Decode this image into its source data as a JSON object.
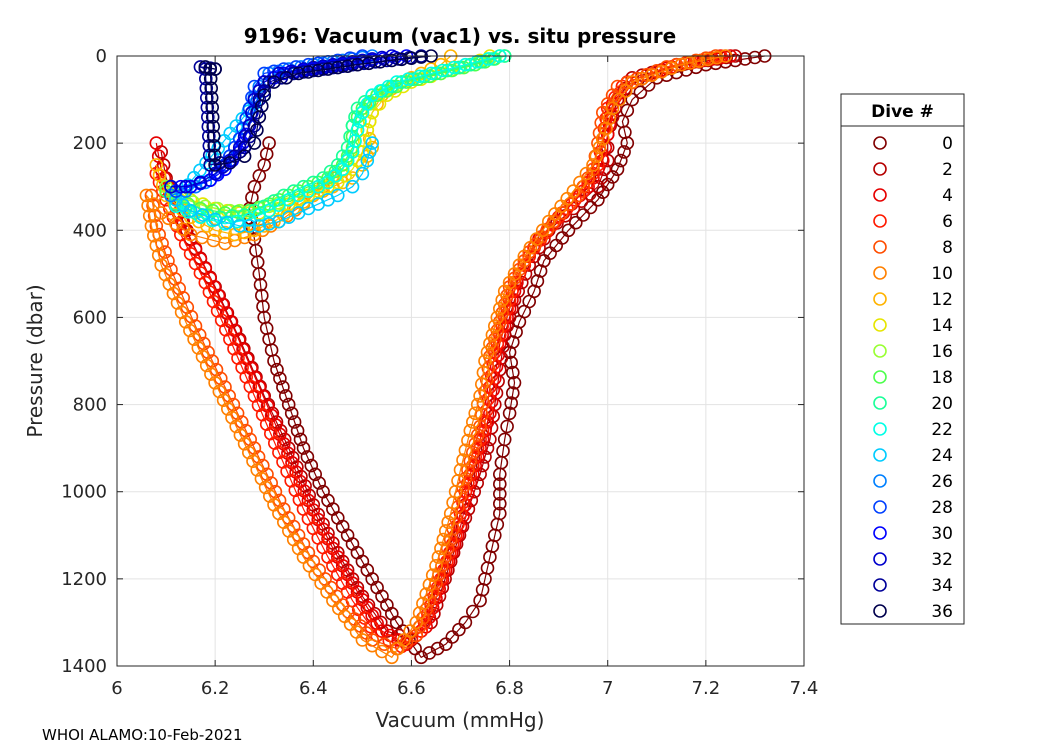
{
  "chart_data": {
    "type": "scatter",
    "title": "9196: Vacuum (vac1) vs. situ pressure",
    "xlabel": "Vacuum (mmHg)",
    "ylabel": "Pressure (dbar)",
    "xlim": [
      6,
      7.4
    ],
    "ylim": [
      0,
      1400
    ],
    "y_reversed": true,
    "x_ticks": [
      "6",
      "6.2",
      "6.4",
      "6.6",
      "6.8",
      "7",
      "7.2",
      "7.4"
    ],
    "y_ticks": [
      "0",
      "200",
      "400",
      "600",
      "800",
      "1000",
      "1200",
      "1400"
    ],
    "x_tick_values": [
      6,
      6.2,
      6.4,
      6.6,
      6.8,
      7,
      7.2,
      7.4
    ],
    "y_tick_values": [
      0,
      200,
      400,
      600,
      800,
      1000,
      1200,
      1400
    ],
    "grid": true,
    "marker": "open circle",
    "legend_title": "Dive #",
    "legend_position": "right",
    "footer": "WHOI ALAMO:10-Feb-2021",
    "series": [
      {
        "name": "0",
        "color": "#800000",
        "x": [
          7.32,
          7.2,
          7.1,
          7.05,
          7.03,
          7.04,
          7.02,
          6.98,
          6.92,
          6.87,
          6.85,
          6.82,
          6.8,
          6.81,
          6.8,
          6.79,
          6.78,
          6.78,
          6.76,
          6.74,
          6.71,
          6.67,
          6.62,
          6.57,
          6.52,
          6.47,
          6.42,
          6.38,
          6.35,
          6.32,
          6.3,
          6.29,
          6.28,
          6.27,
          6.28,
          6.3,
          6.31
        ],
        "y": [
          0,
          20,
          50,
          100,
          150,
          200,
          260,
          330,
          400,
          470,
          540,
          610,
          680,
          750,
          820,
          880,
          960,
          1050,
          1150,
          1250,
          1300,
          1350,
          1380,
          1300,
          1200,
          1100,
          1000,
          900,
          800,
          700,
          600,
          500,
          420,
          350,
          300,
          250,
          200
        ]
      },
      {
        "name": "2",
        "color": "#b50000",
        "x": [
          7.26,
          7.15,
          7.05,
          7.02,
          7.0,
          7.0,
          6.98,
          6.93,
          6.88,
          6.84,
          6.81,
          6.79,
          6.78,
          6.77,
          6.76,
          6.74,
          6.71,
          6.68,
          6.64,
          6.6,
          6.55,
          6.5,
          6.45,
          6.4,
          6.35,
          6.3,
          6.25,
          6.2,
          6.15,
          6.12,
          6.1,
          6.09
        ],
        "y": [
          0,
          20,
          50,
          100,
          180,
          240,
          300,
          350,
          400,
          480,
          560,
          640,
          720,
          800,
          880,
          960,
          1060,
          1160,
          1300,
          1340,
          1320,
          1240,
          1140,
          1030,
          900,
          780,
          650,
          530,
          420,
          340,
          280,
          220
        ]
      },
      {
        "name": "4",
        "color": "#e60000",
        "x": [
          7.25,
          7.14,
          7.04,
          7.01,
          7.0,
          6.99,
          6.96,
          6.91,
          6.86,
          6.82,
          6.8,
          6.78,
          6.77,
          6.76,
          6.74,
          6.72,
          6.7,
          6.67,
          6.63,
          6.59,
          6.54,
          6.49,
          6.44,
          6.39,
          6.34,
          6.29,
          6.24,
          6.19,
          6.14,
          6.11,
          6.09,
          6.08
        ],
        "y": [
          0,
          20,
          60,
          110,
          180,
          240,
          300,
          360,
          420,
          500,
          580,
          660,
          740,
          820,
          900,
          980,
          1080,
          1180,
          1310,
          1350,
          1320,
          1230,
          1130,
          1020,
          890,
          760,
          630,
          510,
          400,
          320,
          260,
          200
        ]
      },
      {
        "name": "6",
        "color": "#ff1a00",
        "x": [
          7.23,
          7.13,
          7.03,
          7.0,
          6.99,
          6.98,
          6.95,
          6.9,
          6.85,
          6.81,
          6.79,
          6.77,
          6.76,
          6.75,
          6.73,
          6.71,
          6.69,
          6.66,
          6.62,
          6.58,
          6.53,
          6.48,
          6.43,
          6.38,
          6.33,
          6.28,
          6.23,
          6.18,
          6.13,
          6.1,
          6.08
        ],
        "y": [
          0,
          25,
          70,
          120,
          190,
          250,
          310,
          370,
          440,
          520,
          600,
          680,
          760,
          840,
          920,
          1000,
          1100,
          1200,
          1320,
          1355,
          1330,
          1250,
          1150,
          1040,
          910,
          780,
          650,
          520,
          410,
          330,
          270
        ]
      },
      {
        "name": "8",
        "color": "#ff4d00",
        "x": [
          7.22,
          7.12,
          7.02,
          6.99,
          6.98,
          6.97,
          6.94,
          6.89,
          6.84,
          6.8,
          6.78,
          6.76,
          6.75,
          6.74,
          6.72,
          6.7,
          6.68,
          6.65,
          6.61,
          6.57,
          6.52,
          6.46,
          6.4,
          6.34,
          6.28,
          6.22,
          6.16,
          6.11,
          6.08,
          6.07
        ],
        "y": [
          0,
          25,
          70,
          130,
          200,
          260,
          320,
          380,
          450,
          530,
          610,
          690,
          770,
          850,
          930,
          1010,
          1110,
          1210,
          1330,
          1360,
          1340,
          1260,
          1160,
          1040,
          900,
          760,
          620,
          490,
          390,
          320
        ]
      },
      {
        "name": "10",
        "color": "#ff8000",
        "x": [
          7.24,
          7.15,
          7.05,
          7.01,
          6.99,
          6.97,
          6.93,
          6.88,
          6.83,
          6.79,
          6.77,
          6.75,
          6.74,
          6.72,
          6.7,
          6.68,
          6.65,
          6.61,
          6.56,
          6.5,
          6.44,
          6.38,
          6.32,
          6.26,
          6.2,
          6.14,
          6.09,
          6.07,
          6.06,
          6.09,
          6.15,
          6.22,
          6.28,
          6.33,
          6.38,
          6.42,
          6.46
        ],
        "y": [
          0,
          20,
          60,
          120,
          190,
          250,
          310,
          380,
          460,
          540,
          620,
          700,
          780,
          860,
          950,
          1050,
          1170,
          1300,
          1380,
          1340,
          1250,
          1150,
          1030,
          890,
          750,
          610,
          480,
          390,
          320,
          360,
          410,
          430,
          410,
          380,
          340,
          300,
          260
        ]
      },
      {
        "name": "12",
        "color": "#ffb300",
        "x": [
          6.68,
          6.66,
          6.62,
          6.58,
          6.54,
          6.52,
          6.51,
          6.52,
          6.5,
          6.48,
          6.44,
          6.4,
          6.36,
          6.32,
          6.28,
          6.24,
          6.2,
          6.15,
          6.1,
          6.08
        ],
        "y": [
          0,
          20,
          40,
          60,
          90,
          130,
          170,
          210,
          250,
          280,
          300,
          320,
          350,
          380,
          400,
          410,
          400,
          370,
          320,
          250
        ]
      },
      {
        "name": "14",
        "color": "#e6e600",
        "x": [
          6.76,
          6.72,
          6.66,
          6.6,
          6.55,
          6.52,
          6.51,
          6.5,
          6.48,
          6.45,
          6.41,
          6.37,
          6.33,
          6.29,
          6.25,
          6.2,
          6.15,
          6.11
        ],
        "y": [
          0,
          20,
          40,
          60,
          90,
          130,
          170,
          220,
          260,
          290,
          310,
          330,
          350,
          360,
          360,
          350,
          330,
          300
        ]
      },
      {
        "name": "16",
        "color": "#99ff33",
        "x": [
          6.78,
          6.72,
          6.65,
          6.58,
          6.53,
          6.5,
          6.49,
          6.48,
          6.46,
          6.43,
          6.39,
          6.35,
          6.31,
          6.27,
          6.23,
          6.18,
          6.13,
          6.1
        ],
        "y": [
          0,
          20,
          40,
          60,
          90,
          130,
          170,
          220,
          260,
          290,
          310,
          330,
          345,
          355,
          355,
          345,
          325,
          300
        ]
      },
      {
        "name": "18",
        "color": "#4dff4d",
        "x": [
          6.79,
          6.73,
          6.66,
          6.59,
          6.53,
          6.5,
          6.48,
          6.48,
          6.46,
          6.43,
          6.39,
          6.35,
          6.31,
          6.27,
          6.22,
          6.17,
          6.12,
          6.1
        ],
        "y": [
          0,
          20,
          40,
          60,
          90,
          120,
          160,
          210,
          250,
          280,
          300,
          320,
          340,
          355,
          360,
          350,
          330,
          310
        ]
      },
      {
        "name": "20",
        "color": "#1aff99",
        "x": [
          6.79,
          6.72,
          6.65,
          6.58,
          6.52,
          6.49,
          6.48,
          6.47,
          6.45,
          6.42,
          6.38,
          6.34,
          6.3,
          6.26,
          6.21,
          6.16,
          6.12
        ],
        "y": [
          0,
          20,
          40,
          60,
          90,
          120,
          160,
          210,
          250,
          280,
          300,
          320,
          345,
          365,
          370,
          360,
          340
        ]
      },
      {
        "name": "22",
        "color": "#00ffe6",
        "x": [
          6.78,
          6.71,
          6.64,
          6.57,
          6.52,
          6.5,
          6.49,
          6.48,
          6.46,
          6.43,
          6.39,
          6.35,
          6.31,
          6.27,
          6.22,
          6.17,
          6.12
        ],
        "y": [
          0,
          20,
          40,
          60,
          90,
          130,
          170,
          220,
          260,
          290,
          310,
          330,
          355,
          375,
          385,
          370,
          345
        ]
      },
      {
        "name": "24",
        "color": "#00ccff",
        "x": [
          6.52,
          6.51,
          6.5,
          6.48,
          6.45,
          6.41,
          6.37,
          6.33,
          6.29,
          6.25,
          6.2,
          6.15,
          6.12,
          6.28,
          6.3
        ],
        "y": [
          200,
          240,
          270,
          300,
          320,
          340,
          360,
          380,
          390,
          390,
          375,
          355,
          330,
          110,
          90
        ]
      },
      {
        "name": "26",
        "color": "#0080ff",
        "x": [
          6.52,
          6.46,
          6.4,
          6.35,
          6.31,
          6.29,
          6.27,
          6.25,
          6.22,
          6.18,
          6.14,
          6.11
        ],
        "y": [
          0,
          10,
          20,
          30,
          40,
          70,
          120,
          190,
          250,
          290,
          310,
          320
        ]
      },
      {
        "name": "28",
        "color": "#0040ff",
        "x": [
          6.5,
          6.45,
          6.39,
          6.34,
          6.3,
          6.28,
          6.27,
          6.25,
          6.22,
          6.19,
          6.15,
          6.12
        ],
        "y": [
          0,
          10,
          20,
          30,
          40,
          70,
          120,
          190,
          250,
          285,
          300,
          310
        ]
      },
      {
        "name": "30",
        "color": "#0000ff",
        "x": [
          6.59,
          6.52,
          6.46,
          6.4,
          6.34,
          6.3,
          6.28,
          6.27,
          6.25,
          6.22,
          6.19,
          6.15,
          6.11
        ],
        "y": [
          0,
          10,
          20,
          30,
          40,
          60,
          100,
          160,
          220,
          260,
          285,
          300,
          300
        ]
      },
      {
        "name": "32",
        "color": "#0000cc",
        "x": [
          6.56,
          6.5,
          6.44,
          6.38,
          6.33,
          6.3,
          6.28,
          6.27,
          6.25,
          6.23,
          6.2,
          6.17,
          6.14,
          6.11
        ],
        "y": [
          0,
          10,
          20,
          30,
          40,
          60,
          100,
          160,
          210,
          240,
          270,
          290,
          300,
          300
        ]
      },
      {
        "name": "34",
        "color": "#000099",
        "x": [
          6.62,
          6.55,
          6.48,
          6.42,
          6.36,
          6.31,
          6.29,
          6.28,
          6.26,
          6.24,
          6.21,
          6.19,
          6.18,
          6.17,
          6.19,
          6.2
        ],
        "y": [
          0,
          10,
          20,
          30,
          40,
          60,
          100,
          160,
          210,
          230,
          245,
          250,
          30,
          25,
          28,
          30
        ]
      },
      {
        "name": "36",
        "color": "#00004d",
        "x": [
          6.64,
          6.56,
          6.49,
          6.43,
          6.37,
          6.32,
          6.3,
          6.29,
          6.28,
          6.26,
          6.23,
          6.2,
          6.19,
          6.18,
          6.2
        ],
        "y": [
          0,
          10,
          20,
          30,
          40,
          60,
          90,
          140,
          200,
          230,
          245,
          250,
          30,
          25,
          30
        ]
      }
    ]
  }
}
